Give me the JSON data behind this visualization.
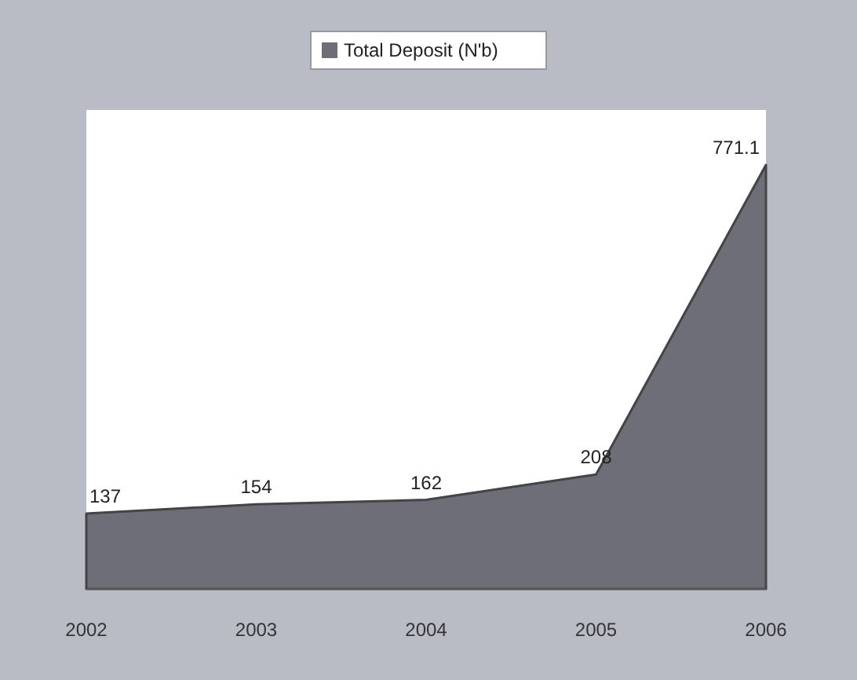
{
  "chart_data": {
    "type": "area",
    "categories": [
      "2002",
      "2003",
      "2004",
      "2005",
      "2006"
    ],
    "series": [
      {
        "name": "Total Deposit (N'b)",
        "color": "#6e6e78",
        "values": [
          137,
          154,
          162,
          208,
          771.1
        ]
      }
    ],
    "data_labels": true,
    "legend": "top"
  }
}
